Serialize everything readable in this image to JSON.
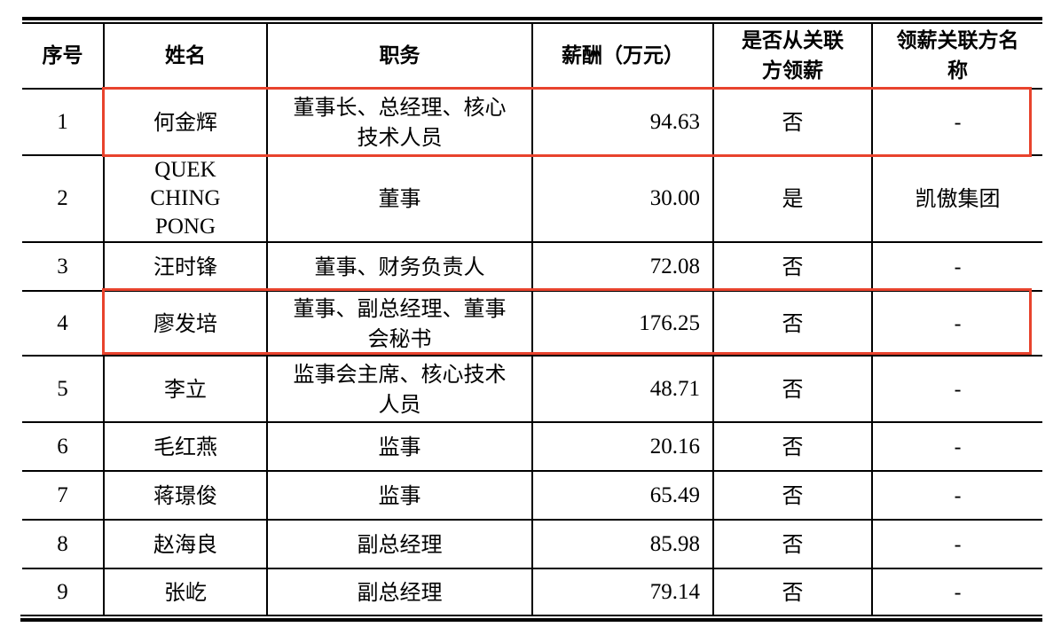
{
  "table": {
    "headers": [
      "序号",
      "姓名",
      "职务",
      "薪酬（万元）",
      "是否从关联方领薪",
      "领薪关联方名称"
    ],
    "rows": [
      {
        "no": "1",
        "name": "何金辉",
        "position": "董事长、总经理、核心技术人员",
        "salary": "94.63",
        "from_related": "否",
        "related_party": "-",
        "highlighted": true
      },
      {
        "no": "2",
        "name": "QUEK CHING PONG",
        "position": "董事",
        "salary": "30.00",
        "from_related": "是",
        "related_party": "凯傲集团",
        "highlighted": false
      },
      {
        "no": "3",
        "name": "汪时锋",
        "position": "董事、财务负责人",
        "salary": "72.08",
        "from_related": "否",
        "related_party": "-",
        "highlighted": false
      },
      {
        "no": "4",
        "name": "廖发培",
        "position": "董事、副总经理、董事会秘书",
        "salary": "176.25",
        "from_related": "否",
        "related_party": "-",
        "highlighted": true
      },
      {
        "no": "5",
        "name": "李立",
        "position": "监事会主席、核心技术人员",
        "salary": "48.71",
        "from_related": "否",
        "related_party": "-",
        "highlighted": false
      },
      {
        "no": "6",
        "name": "毛红燕",
        "position": "监事",
        "salary": "20.16",
        "from_related": "否",
        "related_party": "-",
        "highlighted": false
      },
      {
        "no": "7",
        "name": "蒋璟俊",
        "position": "监事",
        "salary": "65.49",
        "from_related": "否",
        "related_party": "-",
        "highlighted": false
      },
      {
        "no": "8",
        "name": "赵海良",
        "position": "副总经理",
        "salary": "85.98",
        "from_related": "否",
        "related_party": "-",
        "highlighted": false
      },
      {
        "no": "9",
        "name": "张屹",
        "position": "副总经理",
        "salary": "79.14",
        "from_related": "否",
        "related_party": "-",
        "highlighted": false
      }
    ]
  },
  "colors": {
    "highlight": "#e8432d"
  }
}
